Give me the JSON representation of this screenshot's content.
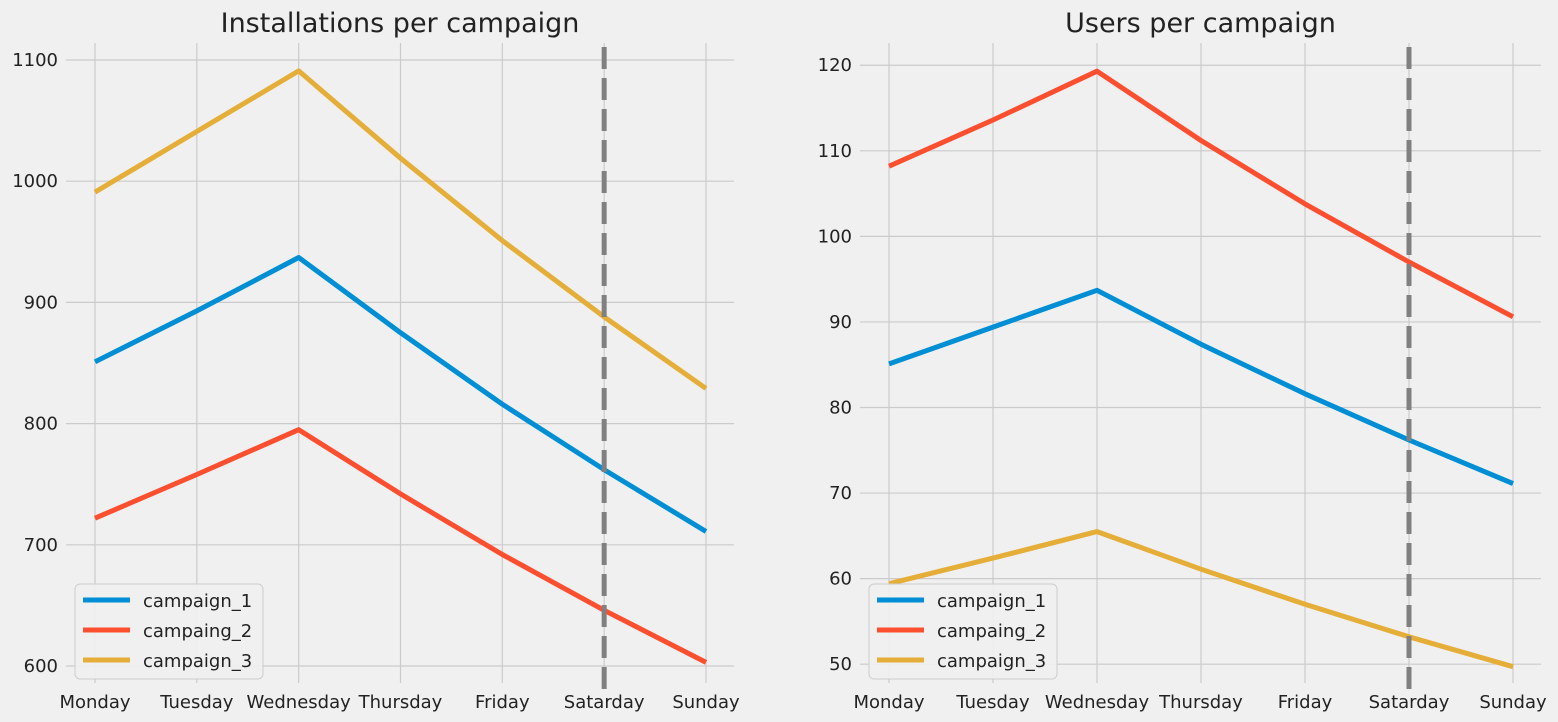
{
  "chart_data": [
    {
      "type": "line",
      "title": "Installations per campaign",
      "categories": [
        "Monday",
        "Tuesday",
        "Wednesday",
        "Thursday",
        "Friday",
        "Satarday",
        "Sunday"
      ],
      "yticks": [
        600,
        700,
        800,
        900,
        1000,
        1100
      ],
      "ylim": [
        586,
        1114
      ],
      "grid": true,
      "legend_position": "lower-left",
      "vline": {
        "category": "Satarday",
        "style": "dashed",
        "color": "#808080"
      },
      "series": [
        {
          "name": "campaign_1",
          "color": "#008fd5",
          "values": [
            851,
            893,
            937,
            875,
            816,
            762,
            711
          ]
        },
        {
          "name": "campaing_2",
          "color": "#fc4f30",
          "values": [
            722,
            758,
            795,
            742,
            692,
            646,
            603
          ]
        },
        {
          "name": "campaign_3",
          "color": "#e5ae38",
          "values": [
            991,
            1041,
            1091,
            1019,
            951,
            888,
            829
          ]
        }
      ]
    },
    {
      "type": "line",
      "title": "Users per campaign",
      "categories": [
        "Monday",
        "Tuesday",
        "Wednesday",
        "Thursday",
        "Friday",
        "Satarday",
        "Sunday"
      ],
      "yticks": [
        50,
        60,
        70,
        80,
        90,
        100,
        110,
        120
      ],
      "ylim": [
        47.8,
        122.6
      ],
      "grid": true,
      "legend_position": "lower-left",
      "vline": {
        "category": "Satarday",
        "style": "dashed",
        "color": "#808080"
      },
      "series": [
        {
          "name": "campaign_1",
          "color": "#008fd5",
          "values": [
            85.1,
            89.4,
            93.7,
            87.4,
            81.6,
            76.2,
            71.1
          ]
        },
        {
          "name": "campaing_2",
          "color": "#fc4f30",
          "values": [
            108.2,
            113.6,
            119.3,
            111.2,
            103.8,
            97.0,
            90.6
          ]
        },
        {
          "name": "campaign_3",
          "color": "#e5ae38",
          "values": [
            59.4,
            62.4,
            65.5,
            61.1,
            57.0,
            53.2,
            49.7
          ]
        }
      ]
    }
  ]
}
